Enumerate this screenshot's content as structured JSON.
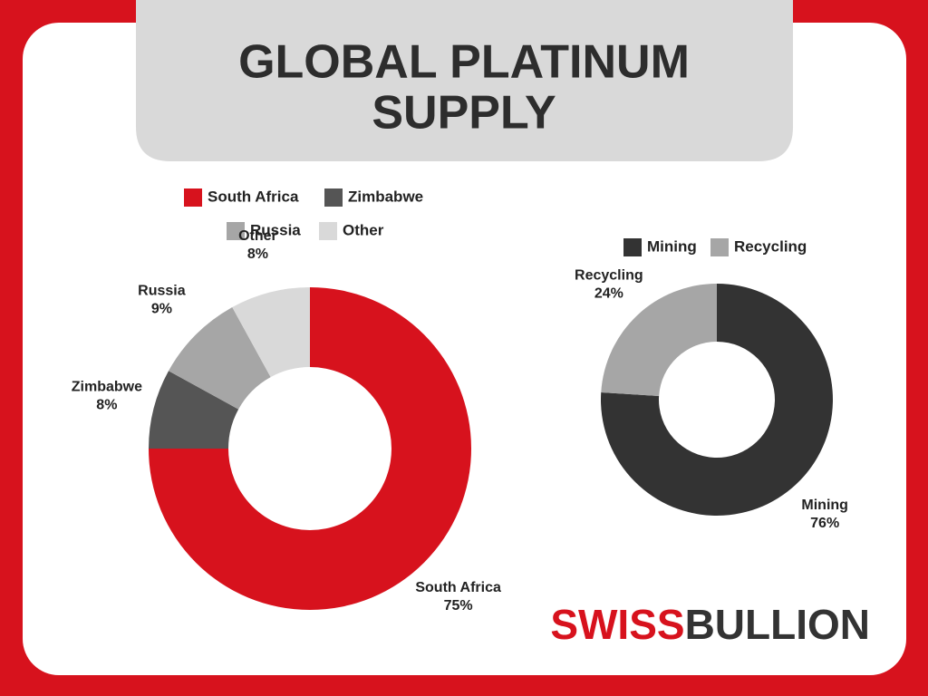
{
  "title": [
    "GLOBAL PLATINUM",
    "SUPPLY"
  ],
  "brand": [
    "SWISS",
    "BULLION"
  ],
  "chart_data": [
    {
      "type": "donut",
      "categories": [
        "South Africa",
        "Zimbabwe",
        "Russia",
        "Other"
      ],
      "values": [
        75,
        8,
        9,
        8
      ],
      "value_labels": [
        "75%",
        "8%",
        "9%",
        "8%"
      ],
      "colors": [
        "#d7121d",
        "#555555",
        "#a6a6a6",
        "#d9d9d9"
      ]
    },
    {
      "type": "donut",
      "categories": [
        "Mining",
        "Recycling"
      ],
      "values": [
        76,
        24
      ],
      "value_labels": [
        "76%",
        "24%"
      ],
      "colors": [
        "#333333",
        "#a6a6a6"
      ]
    }
  ]
}
